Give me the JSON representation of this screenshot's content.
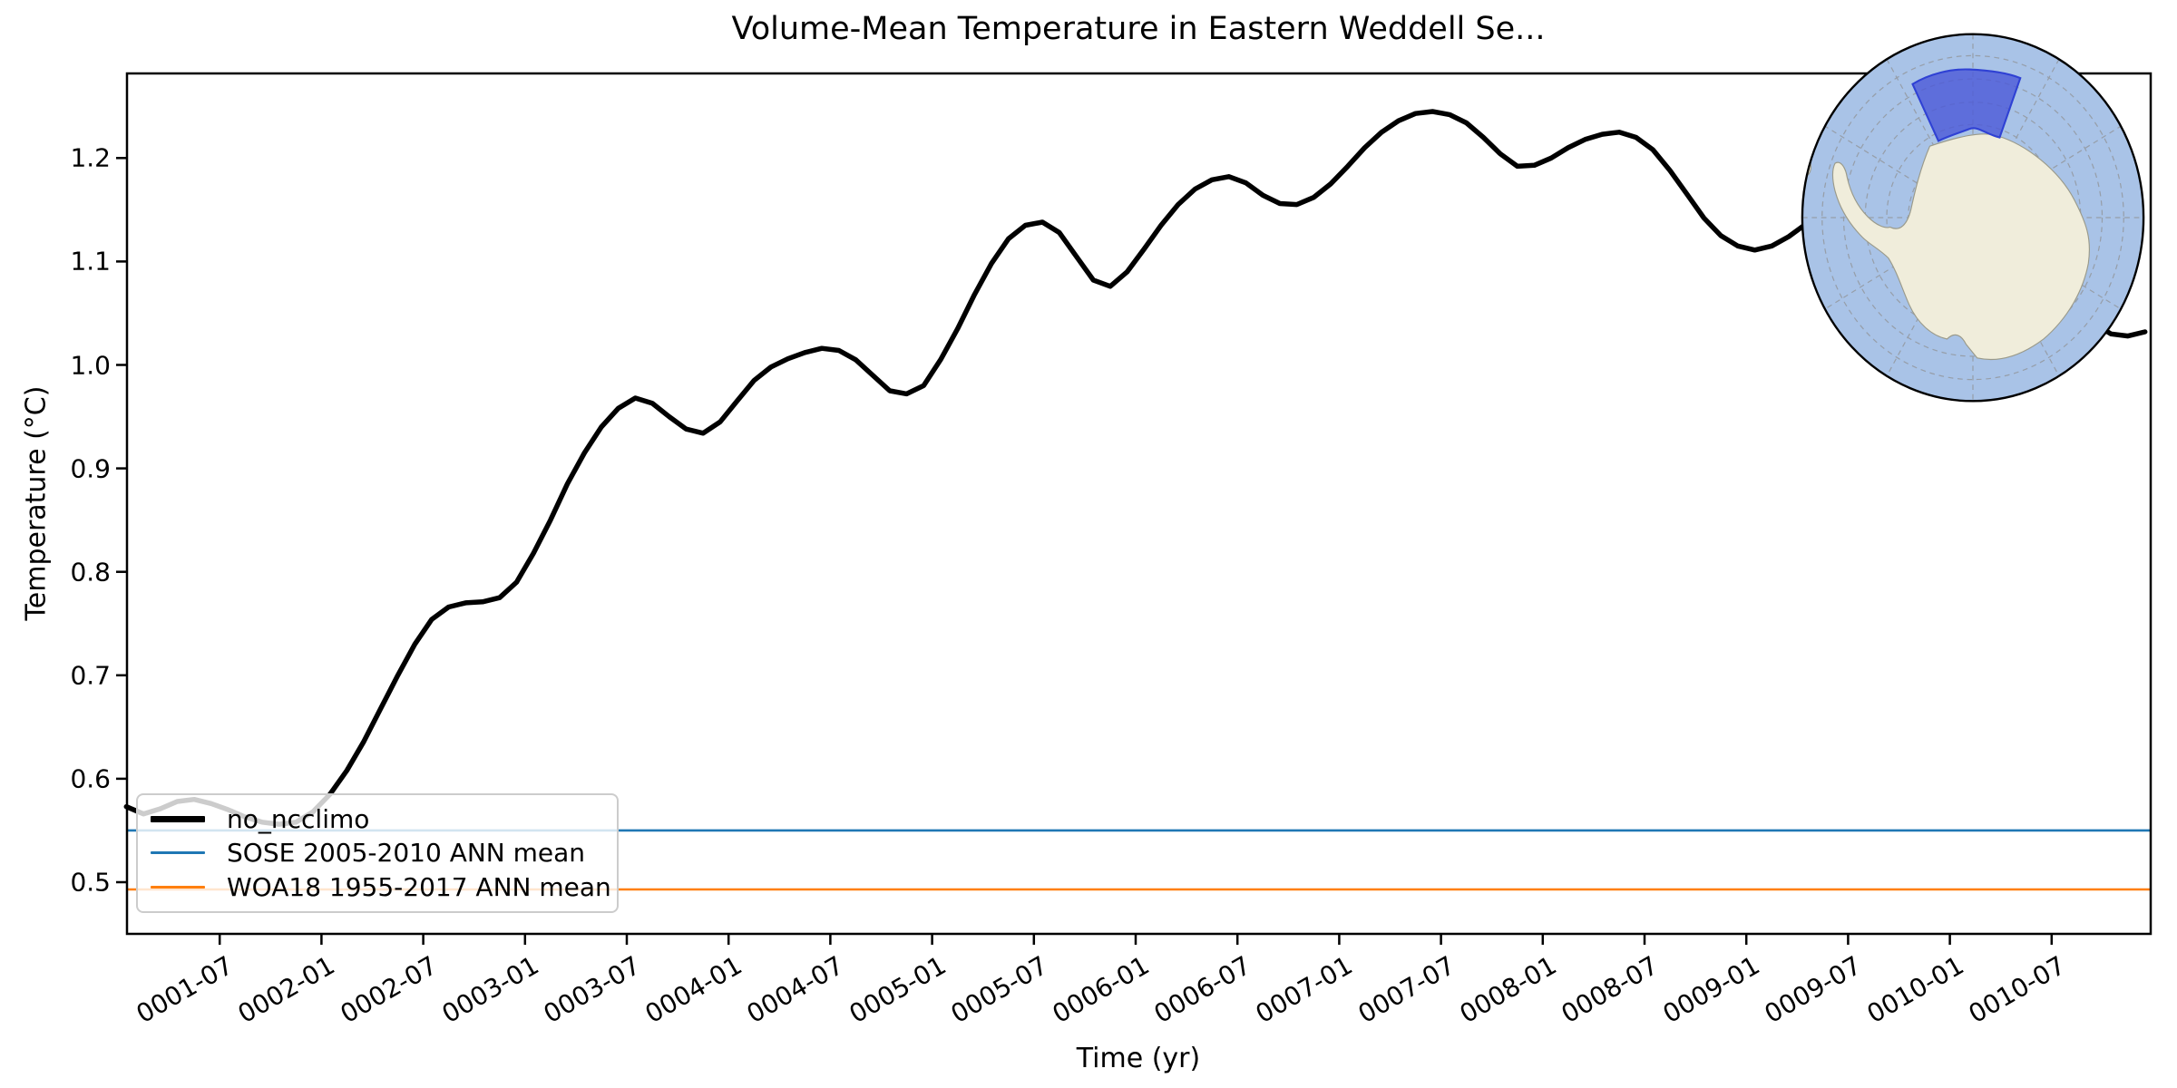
{
  "figure": {
    "title": "Volume-Mean Temperature in Eastern Weddell Se...",
    "xlabel": "Time (yr)",
    "ylabel": "Temperature (°C)"
  },
  "legend": {
    "items": [
      {
        "label": "no_ncclimo",
        "color": "#000000",
        "line_weight": "thick"
      },
      {
        "label": "SOSE 2005-2010 ANN mean",
        "color": "#1f77b4",
        "line_weight": "thin"
      },
      {
        "label": "WOA18 1955-2017 ANN mean",
        "color": "#ff7f0e",
        "line_weight": "thin"
      }
    ],
    "position": "lower left"
  },
  "colors": {
    "series_black": "#000000",
    "sose_blue": "#1f77b4",
    "woa_orange": "#ff7f0e",
    "legend_border": "#cccccc",
    "map_ocean": "#a9c3e7",
    "map_land": "#f0eddb",
    "map_coast": "#9a9a8a",
    "map_graticule": "#8f8f8f",
    "map_region_fill": "#4b59d8",
    "map_region_edge": "#2f41d4"
  },
  "inset_map": {
    "description": "South polar stereographic map of Antarctica with highlighted sector region",
    "highlight_region": "Eastern Weddell Sea sector"
  },
  "chart_data": {
    "type": "line",
    "title": "Volume-Mean Temperature in Eastern Weddell Se...",
    "xlabel": "Time (yr)",
    "ylabel": "Temperature (°C)",
    "x_start": "0001-01",
    "x_frequency": "monthly",
    "n_points": 120,
    "xlim_months": [
      0.53,
      119.83
    ],
    "ylim": [
      0.45,
      1.282
    ],
    "grid": false,
    "x_tick_months": [
      6,
      12,
      18,
      24,
      30,
      36,
      42,
      48,
      54,
      60,
      66,
      72,
      78,
      84,
      90,
      96,
      102,
      108,
      114
    ],
    "x_tick_labels": [
      "0001-07",
      "0002-01",
      "0002-07",
      "0003-01",
      "0003-07",
      "0004-01",
      "0004-07",
      "0005-01",
      "0005-07",
      "0006-01",
      "0006-07",
      "0007-01",
      "0007-07",
      "0008-01",
      "0008-07",
      "0009-01",
      "0009-07",
      "0010-01",
      "0010-07"
    ],
    "y_tick_values": [
      0.5,
      0.6,
      0.7,
      0.8,
      0.9,
      1.0,
      1.1,
      1.2
    ],
    "y_tick_labels": [
      "0.5",
      "0.6",
      "0.7",
      "0.8",
      "0.9",
      "1.0",
      "1.1",
      "1.2"
    ],
    "series": [
      {
        "name": "no_ncclimo",
        "color": "#000000",
        "linewidth": 5.5,
        "values": [
          0.573,
          0.566,
          0.571,
          0.578,
          0.58,
          0.576,
          0.57,
          0.563,
          0.558,
          0.556,
          0.558,
          0.568,
          0.585,
          0.608,
          0.636,
          0.668,
          0.7,
          0.73,
          0.754,
          0.766,
          0.77,
          0.771,
          0.775,
          0.79,
          0.818,
          0.85,
          0.885,
          0.915,
          0.94,
          0.958,
          0.968,
          0.963,
          0.95,
          0.938,
          0.934,
          0.945,
          0.965,
          0.985,
          0.998,
          1.006,
          1.012,
          1.016,
          1.014,
          1.005,
          0.99,
          0.975,
          0.972,
          0.98,
          1.005,
          1.035,
          1.068,
          1.098,
          1.122,
          1.135,
          1.138,
          1.128,
          1.105,
          1.082,
          1.076,
          1.09,
          1.112,
          1.135,
          1.155,
          1.17,
          1.179,
          1.182,
          1.176,
          1.164,
          1.156,
          1.155,
          1.162,
          1.175,
          1.192,
          1.21,
          1.225,
          1.236,
          1.243,
          1.245,
          1.242,
          1.234,
          1.22,
          1.204,
          1.192,
          1.193,
          1.2,
          1.21,
          1.218,
          1.223,
          1.225,
          1.22,
          1.208,
          1.188,
          1.165,
          1.142,
          1.125,
          1.115,
          1.111,
          1.115,
          1.124,
          1.136,
          1.147,
          1.154,
          1.156,
          1.15,
          1.14,
          1.128,
          1.118,
          1.108,
          1.095,
          1.082,
          1.07,
          1.06,
          1.052,
          1.046,
          1.042,
          1.038,
          1.04,
          1.03,
          1.028,
          1.032
        ]
      },
      {
        "name": "SOSE 2005-2010 ANN mean",
        "color": "#1f77b4",
        "linewidth": 2.6,
        "constant": 0.55
      },
      {
        "name": "WOA18 1955-2017 ANN mean",
        "color": "#ff7f0e",
        "linewidth": 2.6,
        "constant": 0.493
      }
    ]
  }
}
